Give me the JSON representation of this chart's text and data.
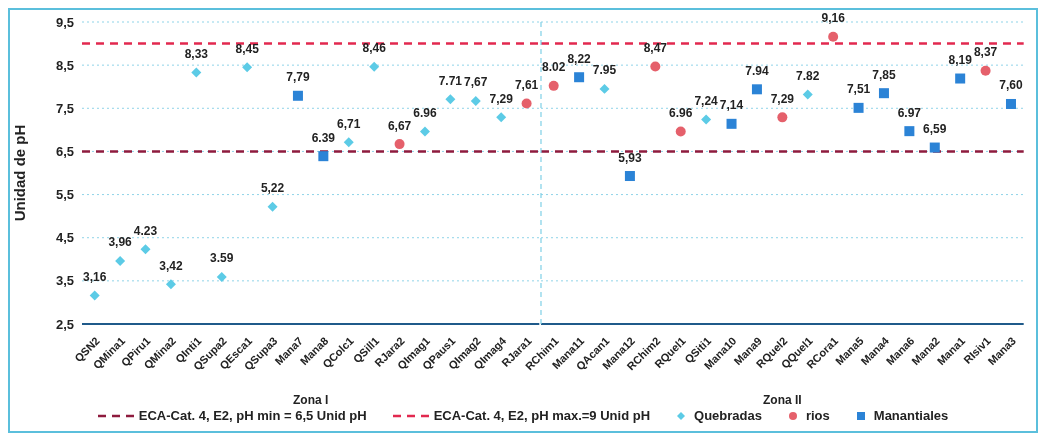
{
  "chart_data": [
    {
      "type": "scatter",
      "ylabel": "Unidad de pH",
      "xlabel": "Zona I",
      "categories": [
        "QSN2",
        "QMina1",
        "QPiru1",
        "QMina2",
        "QInti1",
        "QSupa2",
        "QEsca1",
        "QSupa3",
        "Mana7",
        "Mana8",
        "QColc1",
        "QSill1",
        "RJara2",
        "QImag1",
        "QPaus1",
        "QImag2",
        "QImag4",
        "RJara1"
      ],
      "series": [
        {
          "name": "Quebradas",
          "color": "#5ccbe6",
          "marker": "diamond",
          "values": [
            3.16,
            3.96,
            4.23,
            3.42,
            8.33,
            3.59,
            8.45,
            5.22,
            null,
            null,
            6.71,
            8.46,
            null,
            6.96,
            7.71,
            7.67,
            7.29,
            null
          ],
          "value_labels": [
            "3,16",
            "3,96",
            "4.23",
            "3,42",
            "8,33",
            "3.59",
            "8,45",
            "5,22",
            null,
            null,
            "6,71",
            "8,46",
            null,
            "6.96",
            "7.71",
            "7,67",
            "7,29",
            null
          ]
        },
        {
          "name": "rios",
          "color": "#e5606b",
          "marker": "circle",
          "values": [
            null,
            null,
            null,
            null,
            null,
            null,
            null,
            null,
            null,
            null,
            null,
            null,
            6.67,
            null,
            null,
            null,
            null,
            7.61
          ],
          "value_labels": [
            null,
            null,
            null,
            null,
            null,
            null,
            null,
            null,
            null,
            null,
            null,
            null,
            "6,67",
            null,
            null,
            null,
            null,
            "7,61"
          ]
        },
        {
          "name": "Manantiales",
          "color": "#2b83d6",
          "marker": "square",
          "values": [
            null,
            null,
            null,
            null,
            null,
            null,
            null,
            null,
            7.79,
            6.39,
            null,
            null,
            null,
            null,
            null,
            null,
            null,
            null
          ],
          "value_labels": [
            null,
            null,
            null,
            null,
            null,
            null,
            null,
            null,
            "7,79",
            "6.39",
            null,
            null,
            null,
            null,
            null,
            null,
            null,
            null
          ]
        }
      ],
      "ylim": [
        2.5,
        9.5
      ],
      "yticks": [
        {
          "value": 2.5,
          "label": "2,5"
        },
        {
          "value": 3.5,
          "label": "3,5"
        },
        {
          "value": 4.5,
          "label": "4,5"
        },
        {
          "value": 5.5,
          "label": "5,5"
        },
        {
          "value": 6.5,
          "label": "6,5"
        },
        {
          "value": 7.5,
          "label": "7,5"
        },
        {
          "value": 8.5,
          "label": "8,5"
        },
        {
          "value": 9.5,
          "label": "9,5"
        }
      ],
      "ref_lines": [
        {
          "axis": "y",
          "value": 6.5,
          "label": "ECA-Cat. 4, E2, pH min = 6,5 Unid pH",
          "color": "#8e1b3e",
          "line_style": "dashed"
        },
        {
          "axis": "y",
          "value": 9,
          "label": "ECA-Cat. 4, E2, pH max.=9 Unid pH",
          "color": "#e2294f",
          "line_style": "dashed"
        }
      ],
      "grid": "y",
      "legend": "bottom"
    },
    {
      "type": "scatter",
      "xlabel": "Zona II",
      "categories": [
        "RChim1",
        "Mana11",
        "QAcan1",
        "Mana12",
        "RChim2",
        "RQuel1",
        "QSiti1",
        "Mana10",
        "Mana9",
        "RQuel2",
        "QQuel1",
        "RCora1",
        "Mana5",
        "Mana4",
        "Mana6",
        "Mana2",
        "Mana1",
        "RIsiv1",
        "Mana3"
      ],
      "series": [
        {
          "color": "#5ccbe6",
          "marker": "diamond",
          "values": [
            null,
            null,
            7.95,
            null,
            null,
            null,
            7.24,
            null,
            null,
            null,
            7.82,
            null,
            null,
            null,
            null,
            null,
            null,
            null,
            null
          ],
          "value_labels": [
            null,
            null,
            "7.95",
            null,
            null,
            null,
            "7,24",
            null,
            null,
            null,
            "7.82",
            null,
            null,
            null,
            null,
            null,
            null,
            null,
            null
          ]
        },
        {
          "color": "#e5606b",
          "marker": "circle",
          "values": [
            8.02,
            null,
            null,
            null,
            8.47,
            6.96,
            null,
            null,
            null,
            7.29,
            null,
            9.16,
            null,
            null,
            null,
            null,
            null,
            8.37,
            null
          ],
          "value_labels": [
            "8.02",
            null,
            null,
            null,
            "8,47",
            "6.96",
            null,
            null,
            null,
            "7,29",
            null,
            "9,16",
            null,
            null,
            null,
            null,
            null,
            "8,37",
            null
          ]
        },
        {
          "color": "#2b83d6",
          "marker": "square",
          "values": [
            null,
            8.22,
            null,
            5.93,
            null,
            null,
            null,
            7.14,
            7.94,
            null,
            null,
            null,
            7.51,
            7.85,
            6.97,
            6.59,
            8.19,
            null,
            7.6
          ],
          "value_labels": [
            null,
            "8,22",
            null,
            "5,93",
            null,
            null,
            null,
            "7,14",
            "7.94",
            null,
            null,
            null,
            "7,51",
            "7,85",
            "6.97",
            "6,59",
            "8,19",
            null,
            "7,60"
          ]
        }
      ],
      "ylim": [
        2.5,
        9.5
      ],
      "yticks": [
        2.5,
        3.5,
        4.5,
        5.5,
        6.5,
        7.5,
        8.5,
        9.5
      ],
      "tick_labels": "x",
      "ref_lines": [
        {
          "axis": "y",
          "value": 6.5,
          "color": "#8e1b3e",
          "line_style": "dashed"
        },
        {
          "axis": "y",
          "value": 9,
          "color": "#e2294f",
          "line_style": "dashed"
        }
      ],
      "grid": "y"
    }
  ]
}
